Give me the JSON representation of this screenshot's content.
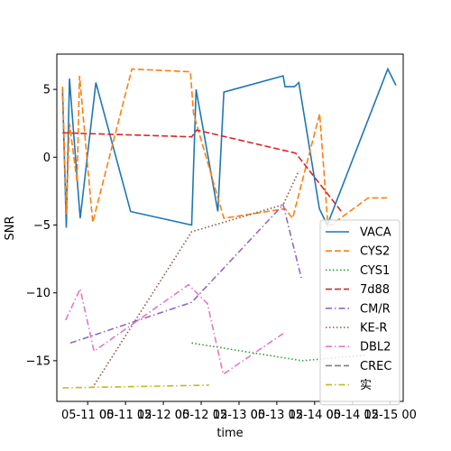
{
  "chart_data": {
    "type": "line",
    "xlabel": "time",
    "ylabel": "SNR",
    "x_ticks": [
      "05-11 00",
      "05-11 12",
      "05-12 00",
      "05-12 12",
      "05-13 00",
      "05-13 12",
      "05-14 00",
      "05-14 12",
      "05-15 00"
    ],
    "y_ticks": [
      "−15",
      "−10",
      "−5",
      "0",
      "5"
    ],
    "x_unit": "hours after 05-10 00",
    "xlim": [
      14.2,
      124.1
    ],
    "ylim": [
      -18.0,
      7.6
    ],
    "grid": false,
    "legend_position": "lower-right",
    "series": [
      {
        "name": "VACA",
        "color": "#1f77b4",
        "dash": "solid",
        "x": [
          16.0,
          17.2,
          18.2,
          21.6,
          26.6,
          37.6,
          57.0,
          58.4,
          65.3,
          67.2,
          86.0,
          86.6,
          89.6,
          91.0,
          97.5,
          100.0,
          119.2,
          121.8
        ],
        "y": [
          5.0,
          -5.2,
          5.8,
          -4.5,
          5.5,
          -4.0,
          -5.0,
          5.0,
          -4.0,
          4.8,
          6.0,
          5.2,
          5.2,
          5.5,
          -3.8,
          -5.0,
          6.5,
          5.3
        ]
      },
      {
        "name": "CYS2",
        "color": "#ff7f0e",
        "dash": "dashed",
        "x": [
          16.0,
          17.2,
          18.2,
          20.6,
          21.4,
          25.6,
          38.0,
          56.6,
          57.6,
          67.2,
          86.6,
          89.0,
          97.6,
          100.2,
          101.2,
          113.0,
          119.0
        ],
        "y": [
          5.2,
          -4.2,
          2.5,
          -1.8,
          6.0,
          -4.8,
          6.5,
          6.3,
          3.2,
          -4.5,
          -3.8,
          -4.5,
          3.2,
          -5.0,
          -5.0,
          -3.0,
          -3.0
        ]
      },
      {
        "name": "CYS1",
        "color": "#2ca02c",
        "dash": "dotted",
        "x": [
          57.0,
          92.0,
          112.0
        ],
        "y": [
          -13.7,
          -15.0,
          -14.6
        ]
      },
      {
        "name": "7d88",
        "color": "#d62728",
        "dash": "dashed",
        "x": [
          16.0,
          57.0,
          58.6,
          90.0,
          104.5
        ],
        "y": [
          1.8,
          1.5,
          2.0,
          0.3,
          -4.0
        ]
      },
      {
        "name": "CM/R",
        "color": "#9467bd",
        "dash": "dashdot",
        "x": [
          18.5,
          57.0,
          86.0,
          92.0
        ],
        "y": [
          -13.7,
          -10.7,
          -3.5,
          -9.1
        ]
      },
      {
        "name": "KE-R",
        "color": "#8c564b",
        "dash": "dotted",
        "x": [
          25.5,
          57.0,
          86.0,
          91.0
        ],
        "y": [
          -17.0,
          -5.5,
          -3.5,
          -1.0
        ]
      },
      {
        "name": "DBL2",
        "color": "#e377c2",
        "dash": "dashdot",
        "x": [
          17.0,
          21.6,
          26.0,
          56.0,
          62.0,
          67.0,
          86.0
        ],
        "y": [
          -12.0,
          -9.7,
          -14.3,
          -9.4,
          -10.8,
          -16.0,
          -13.0
        ]
      },
      {
        "name": "CREC",
        "color": "#7f7f7f",
        "dash": "dashed",
        "x": [],
        "y": []
      },
      {
        "name": "实",
        "color": "#bcbd22",
        "dash": "dashdot",
        "x": [
          16.0,
          62.5
        ],
        "y": [
          -17.0,
          -16.8
        ]
      }
    ]
  }
}
